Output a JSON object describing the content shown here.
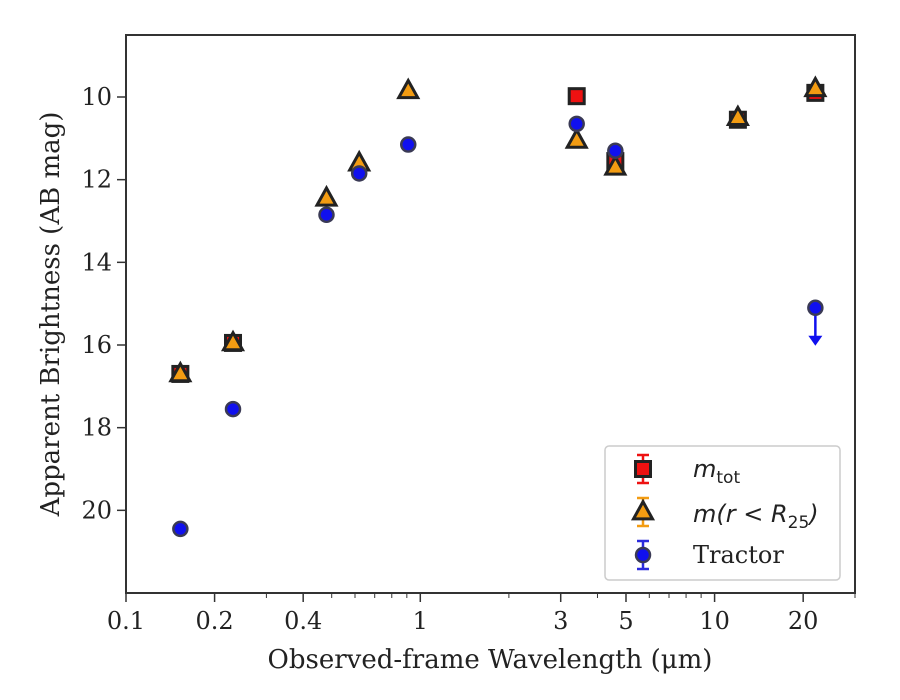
{
  "chart_data": {
    "type": "scatter",
    "xlabel": "Observed-frame Wavelength (μm)",
    "ylabel": "Apparent Brightness (AB mag)",
    "x_scale": "log",
    "xlim": [
      0.1,
      30
    ],
    "ylim": [
      22,
      8.5
    ],
    "y_inverted": true,
    "x_ticks": [
      0.1,
      0.2,
      0.4,
      1,
      3,
      5,
      10,
      20
    ],
    "x_tick_labels": [
      "0.1",
      "0.2",
      "0.4",
      "1",
      "3",
      "5",
      "10",
      "20"
    ],
    "y_ticks": [
      10,
      12,
      14,
      16,
      18,
      20
    ],
    "y_tick_labels": [
      "10",
      "12",
      "14",
      "16",
      "18",
      "20"
    ],
    "grid": false,
    "legend_position": "lower-right",
    "series": [
      {
        "name": "m_tot",
        "legend_label": "m",
        "legend_subscript": "tot",
        "marker": "square",
        "color": "#ee1111",
        "x": [
          0.153,
          0.231,
          3.4,
          4.6,
          12,
          22
        ],
        "y": [
          16.7,
          15.95,
          9.98,
          11.55,
          10.55,
          9.9
        ]
      },
      {
        "name": "m(r < R25)",
        "legend_label": "m(r < R",
        "legend_subscript": "25",
        "legend_suffix": ")",
        "marker": "triangle",
        "color": "#f39c12",
        "x": [
          0.153,
          0.231,
          0.48,
          0.62,
          0.91,
          3.4,
          4.6,
          12,
          22
        ],
        "y": [
          16.7,
          15.95,
          12.45,
          11.6,
          9.85,
          11.05,
          11.7,
          10.5,
          9.8
        ]
      },
      {
        "name": "Tractor",
        "legend_label": "Tractor",
        "marker": "circle",
        "color": "#1010ee",
        "x": [
          0.153,
          0.231,
          0.48,
          0.62,
          0.91,
          3.4,
          4.6,
          22
        ],
        "y": [
          20.45,
          17.55,
          12.85,
          11.85,
          11.15,
          10.65,
          11.3,
          15.1
        ],
        "upper_limit_at_x": 22
      }
    ]
  }
}
